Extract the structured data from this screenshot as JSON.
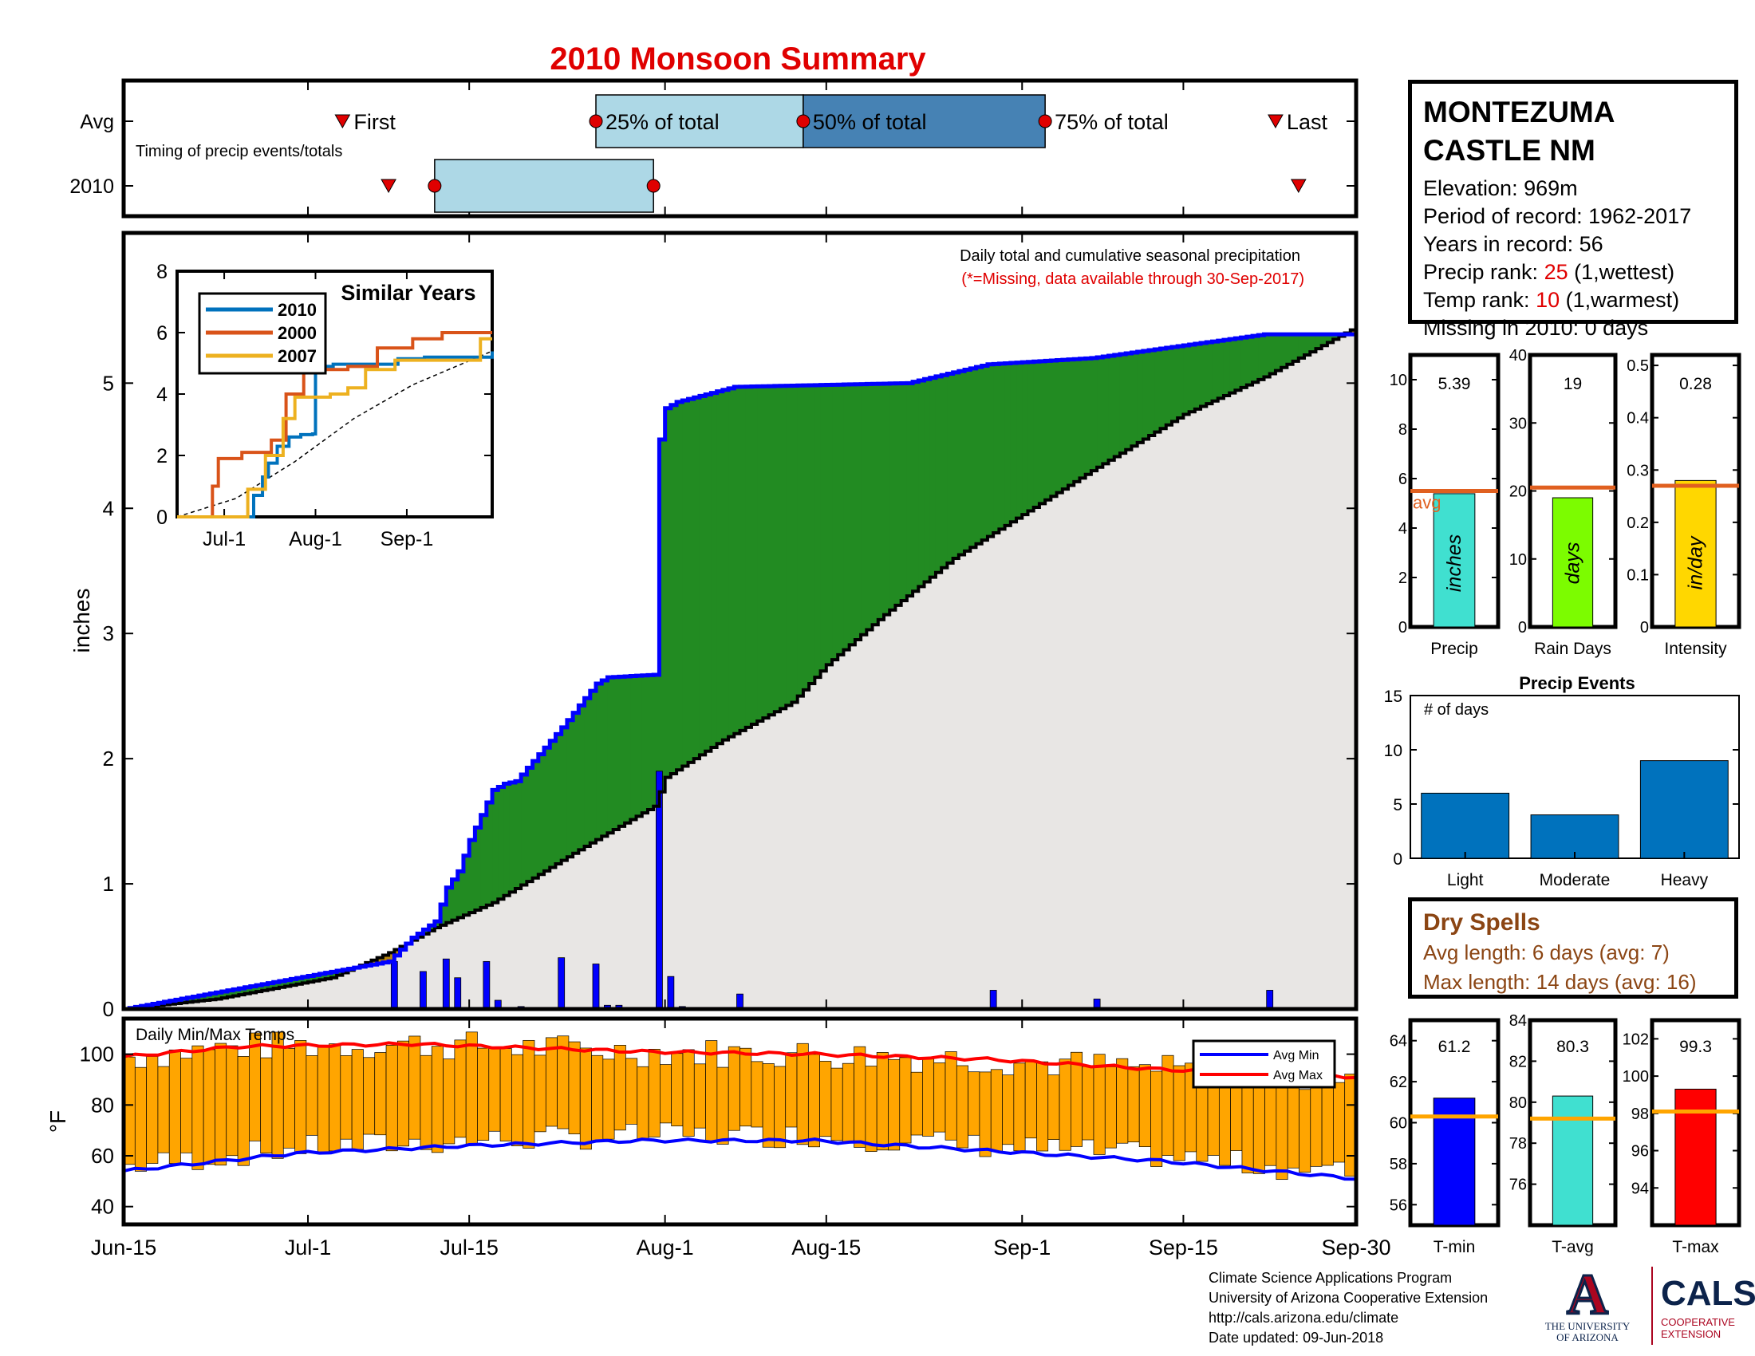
{
  "page_title": "2010 Monsoon Summary",
  "station": {
    "name_line1": "MONTEZUMA",
    "name_line2": "CASTLE NM",
    "elevation": "Elevation: 969m",
    "period": "Period of record: 1962-2017",
    "years": "Years in record: 56",
    "precip_rank_label": "Precip rank: ",
    "precip_rank_value": "25",
    "precip_rank_suffix": " (1,wettest)",
    "temp_rank_label": "Temp rank: ",
    "temp_rank_value": "10",
    "temp_rank_suffix": " (1,warmest)",
    "missing": "Missing in 2010: 0 days"
  },
  "dry_spells": {
    "title": "Dry Spells",
    "avg_length": "Avg length: 6 days (avg: 7)",
    "max_length": "Max length: 14 days (avg: 16)"
  },
  "credits": {
    "line1": "Climate Science Applications Program",
    "line2": "University of Arizona Cooperative Extension",
    "line3": "http://cals.arizona.edu/climate",
    "line4": " Date updated: 09-Jun-2018"
  },
  "logos": {
    "ua_letter": "A",
    "ua_line1": "THE UNIVERSITY",
    "ua_line2": "OF ARIZONA",
    "cals_name": "CALS",
    "cals_line1": "COOPERATIVE",
    "cals_line2": "EXTENSION"
  },
  "colors": {
    "title_red": "#e00000",
    "green": "#228b22",
    "gold": "#b8860b",
    "blue": "#0000ff",
    "light_gray": "#e8e6e4",
    "box_light": "#add8e6",
    "box_dark": "#4682b4",
    "orange_line": "#e06020",
    "temp_bar": "#ffa500"
  },
  "chart_data": [
    {
      "id": "timing",
      "type": "box-timeline",
      "title": "Timing of precip events/totals",
      "row_labels": [
        "Avg",
        "2010"
      ],
      "avg": {
        "first": "Jul-4",
        "p25": "Jul-26",
        "p50": "Aug-13",
        "p75": "Sep-3",
        "last": "Sep-23"
      },
      "year2010": {
        "first": "Jul-8",
        "p25": "Jul-12",
        "p50": "Jul-31",
        "last": "Sep-25"
      },
      "labels": {
        "first": "First",
        "p25": "25% of total",
        "p50": "50% of total",
        "p75": "75% of total",
        "last": "Last"
      }
    },
    {
      "id": "cumulative",
      "type": "area",
      "annotation_line1": "Daily total and cumulative seasonal precipitation",
      "annotation_line2": "(*=Missing, data available through 30-Sep-2017)",
      "ylabel": "inches",
      "ylim": [
        0,
        6.2
      ],
      "yticks": [
        0,
        1,
        2,
        3,
        4,
        5
      ],
      "x_tick_labels": [
        "Jun-15",
        "Jul-1",
        "Jul-15",
        "Aug-1",
        "Aug-15",
        "Sep-1",
        "Sep-15",
        "Sep-30"
      ],
      "x_tick_days": [
        0,
        16,
        30,
        47,
        61,
        78,
        92,
        107
      ],
      "cumulative_2010": [
        {
          "day": 0,
          "value": 0
        },
        {
          "day": 23,
          "value": 0.38
        },
        {
          "day": 25,
          "value": 0.57
        },
        {
          "day": 27,
          "value": 0.7
        },
        {
          "day": 28,
          "value": 0.97
        },
        {
          "day": 29,
          "value": 1.1
        },
        {
          "day": 30,
          "value": 1.35
        },
        {
          "day": 31,
          "value": 1.55
        },
        {
          "day": 32,
          "value": 1.75
        },
        {
          "day": 33,
          "value": 1.8
        },
        {
          "day": 34,
          "value": 1.82
        },
        {
          "day": 38,
          "value": 2.25
        },
        {
          "day": 41,
          "value": 2.6
        },
        {
          "day": 42,
          "value": 2.65
        },
        {
          "day": 46,
          "value": 2.67
        },
        {
          "day": 46.5,
          "value": 4.55
        },
        {
          "day": 47,
          "value": 4.8
        },
        {
          "day": 48,
          "value": 4.85
        },
        {
          "day": 53,
          "value": 4.97
        },
        {
          "day": 68,
          "value": 5.0
        },
        {
          "day": 75,
          "value": 5.15
        },
        {
          "day": 84,
          "value": 5.2
        },
        {
          "day": 99,
          "value": 5.39
        },
        {
          "day": 107,
          "value": 5.39
        }
      ],
      "cumulative_avg": [
        {
          "day": 0,
          "value": 0
        },
        {
          "day": 8,
          "value": 0.08
        },
        {
          "day": 18,
          "value": 0.25
        },
        {
          "day": 23,
          "value": 0.45
        },
        {
          "day": 27,
          "value": 0.65
        },
        {
          "day": 32,
          "value": 0.85
        },
        {
          "day": 40,
          "value": 1.3
        },
        {
          "day": 46,
          "value": 1.62
        },
        {
          "day": 47,
          "value": 1.85
        },
        {
          "day": 52,
          "value": 2.15
        },
        {
          "day": 58,
          "value": 2.45
        },
        {
          "day": 61,
          "value": 2.75
        },
        {
          "day": 66,
          "value": 3.15
        },
        {
          "day": 72,
          "value": 3.6
        },
        {
          "day": 78,
          "value": 3.95
        },
        {
          "day": 84,
          "value": 4.3
        },
        {
          "day": 92,
          "value": 4.75
        },
        {
          "day": 99,
          "value": 5.05
        },
        {
          "day": 104,
          "value": 5.3
        },
        {
          "day": 107,
          "value": 5.45
        }
      ],
      "daily_bars": [
        {
          "day": 23.5,
          "value": 0.38
        },
        {
          "day": 26,
          "value": 0.3
        },
        {
          "day": 28,
          "value": 0.4
        },
        {
          "day": 29,
          "value": 0.25
        },
        {
          "day": 31.5,
          "value": 0.38
        },
        {
          "day": 32.5,
          "value": 0.07
        },
        {
          "day": 34.5,
          "value": 0.02
        },
        {
          "day": 38,
          "value": 0.41
        },
        {
          "day": 41,
          "value": 0.36
        },
        {
          "day": 42,
          "value": 0.03
        },
        {
          "day": 43,
          "value": 0.03
        },
        {
          "day": 46.5,
          "value": 1.9
        },
        {
          "day": 47.5,
          "value": 0.26
        },
        {
          "day": 48.5,
          "value": 0.02
        },
        {
          "day": 53.5,
          "value": 0.12
        },
        {
          "day": 75.5,
          "value": 0.15
        },
        {
          "day": 84.5,
          "value": 0.08
        },
        {
          "day": 99.5,
          "value": 0.15
        }
      ],
      "inset": {
        "title": "Similar Years",
        "ylim": [
          0,
          8
        ],
        "yticks": [
          0,
          2,
          4,
          6,
          8
        ],
        "x_tick_labels": [
          "Jul-1",
          "Aug-1",
          "Sep-1"
        ],
        "series": [
          {
            "name": "2010",
            "color": "#0072bd",
            "points": [
              [
                0,
                0
              ],
              [
                23,
                0
              ],
              [
                26,
                0.7
              ],
              [
                29,
                1.3
              ],
              [
                31,
                1.75
              ],
              [
                34,
                2.3
              ],
              [
                38,
                2.6
              ],
              [
                42,
                2.68
              ],
              [
                46,
                2.7
              ],
              [
                47,
                4.9
              ],
              [
                53,
                4.97
              ],
              [
                75,
                5.15
              ],
              [
                84,
                5.2
              ],
              [
                107,
                5.39
              ]
            ]
          },
          {
            "name": "2000",
            "color": "#d95319",
            "points": [
              [
                0,
                0
              ],
              [
                10,
                0
              ],
              [
                12,
                1.0
              ],
              [
                14,
                1.9
              ],
              [
                22,
                2.1
              ],
              [
                32,
                2.5
              ],
              [
                37,
                4.0
              ],
              [
                43,
                4.8
              ],
              [
                58,
                4.9
              ],
              [
                68,
                5.5
              ],
              [
                80,
                5.8
              ],
              [
                90,
                6.0
              ],
              [
                107,
                6.0
              ]
            ]
          },
          {
            "name": "2007",
            "color": "#edb120",
            "points": [
              [
                0,
                0
              ],
              [
                18,
                0
              ],
              [
                24,
                0.9
              ],
              [
                30,
                2.0
              ],
              [
                36,
                3.2
              ],
              [
                40,
                3.9
              ],
              [
                52,
                4.0
              ],
              [
                58,
                4.2
              ],
              [
                64,
                4.8
              ],
              [
                74,
                5.1
              ],
              [
                98,
                5.1
              ],
              [
                103,
                5.8
              ],
              [
                107,
                5.8
              ]
            ]
          }
        ],
        "avg_points": [
          [
            0,
            0
          ],
          [
            20,
            0.6
          ],
          [
            40,
            1.8
          ],
          [
            60,
            3.2
          ],
          [
            80,
            4.3
          ],
          [
            107,
            5.4
          ]
        ]
      }
    },
    {
      "id": "temps",
      "type": "bar-range",
      "title": "Daily Min/Max Temps",
      "ylabel": "°F",
      "ylim": [
        33,
        114
      ],
      "yticks": [
        40,
        60,
        80,
        100
      ],
      "legend": [
        "Avg Min",
        "Avg Max"
      ],
      "avg_min": [
        [
          0,
          54
        ],
        [
          15,
          61
        ],
        [
          30,
          64
        ],
        [
          45,
          66
        ],
        [
          60,
          66
        ],
        [
          75,
          62
        ],
        [
          90,
          58
        ],
        [
          107,
          51
        ]
      ],
      "avg_max": [
        [
          0,
          99
        ],
        [
          10,
          103
        ],
        [
          25,
          104
        ],
        [
          45,
          101
        ],
        [
          60,
          100
        ],
        [
          75,
          98
        ],
        [
          90,
          94
        ],
        [
          107,
          91
        ]
      ]
    },
    {
      "id": "season_stats",
      "type": "bar",
      "panels": [
        {
          "label": "Precip",
          "value": 5.39,
          "value_text": "5.39",
          "avg": 5.5,
          "unit": "inches",
          "color": "#40e0d0",
          "ylim": [
            0,
            11
          ],
          "yticks": [
            0,
            2,
            4,
            6,
            8,
            10
          ],
          "avg_label": "avg"
        },
        {
          "label": "Rain Days",
          "value": 19,
          "value_text": "19",
          "avg": 20.5,
          "unit": "days",
          "color": "#7cfc00",
          "ylim": [
            0,
            40
          ],
          "yticks": [
            0,
            10,
            20,
            30,
            40
          ]
        },
        {
          "label": "Intensity",
          "value": 0.28,
          "value_text": "0.28",
          "avg": 0.27,
          "unit": "in/day",
          "color": "#ffd700",
          "ylim": [
            0,
            0.52
          ],
          "yticks": [
            0,
            0.1,
            0.2,
            0.3,
            0.4,
            0.5
          ]
        }
      ]
    },
    {
      "id": "precip_events",
      "type": "bar",
      "title": "Precip Events",
      "ylabel": "# of days",
      "categories": [
        "Light",
        "Moderate",
        "Heavy"
      ],
      "values": [
        6,
        4,
        9
      ],
      "ylim": [
        0,
        15
      ],
      "yticks": [
        0,
        5,
        10,
        15
      ]
    },
    {
      "id": "temp_stats",
      "type": "bar",
      "panels": [
        {
          "label": "T-min",
          "value": 61.2,
          "value_text": "61.2",
          "avg": 60.3,
          "color": "#0000ff",
          "ylim": [
            55,
            65
          ],
          "yticks": [
            56,
            58,
            60,
            62,
            64
          ]
        },
        {
          "label": "T-avg",
          "value": 80.3,
          "value_text": "80.3",
          "avg": 79.2,
          "color": "#40e0d0",
          "ylim": [
            74,
            84
          ],
          "yticks": [
            76,
            78,
            80,
            82,
            84
          ]
        },
        {
          "label": "T-max",
          "value": 99.3,
          "value_text": "99.3",
          "avg": 98.1,
          "color": "#ff0000",
          "ylim": [
            92,
            103
          ],
          "yticks": [
            94,
            96,
            98,
            100,
            102
          ]
        }
      ]
    }
  ]
}
